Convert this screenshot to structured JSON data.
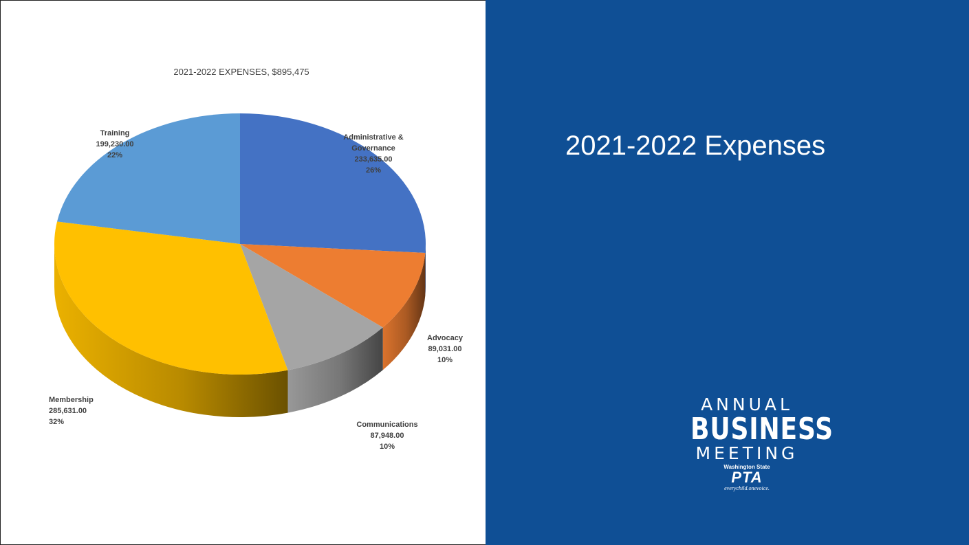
{
  "slide": {
    "title": "2021-2022 Expenses"
  },
  "logo": {
    "line1": "ANNUAL",
    "line2": "BUSINESS",
    "line3": "MEETING",
    "org_state": "Washington State",
    "org_name": "PTA",
    "tagline": "everychild.onevoice."
  },
  "colors": {
    "panel_background": "#0f4f95",
    "administrative": "#4472c4",
    "advocacy": "#ed7d31",
    "communications": "#a5a5a5",
    "membership": "#ffc000",
    "training": "#5b9bd5"
  },
  "chart_data": {
    "type": "pie",
    "style": "3d",
    "title": "2021-2022 EXPENSES, $895,475",
    "slices": [
      {
        "label_lines": [
          "Administrative &",
          "Governance"
        ],
        "value": 233635.0,
        "value_text": "233,635.00",
        "percent_text": "26%",
        "color": "#4472c4"
      },
      {
        "label_lines": [
          "Advocacy"
        ],
        "value": 89031.0,
        "value_text": "89,031.00",
        "percent_text": "10%",
        "color": "#ed7d31"
      },
      {
        "label_lines": [
          "Communications"
        ],
        "value": 87948.0,
        "value_text": "87,948.00",
        "percent_text": "10%",
        "color": "#a5a5a5"
      },
      {
        "label_lines": [
          "Membership"
        ],
        "value": 285631.0,
        "value_text": "285,631.00",
        "percent_text": "32%",
        "color": "#ffc000"
      },
      {
        "label_lines": [
          "Training"
        ],
        "value": 199230.0,
        "value_text": "199,230.00",
        "percent_text": "22%",
        "color": "#5b9bd5"
      }
    ]
  }
}
